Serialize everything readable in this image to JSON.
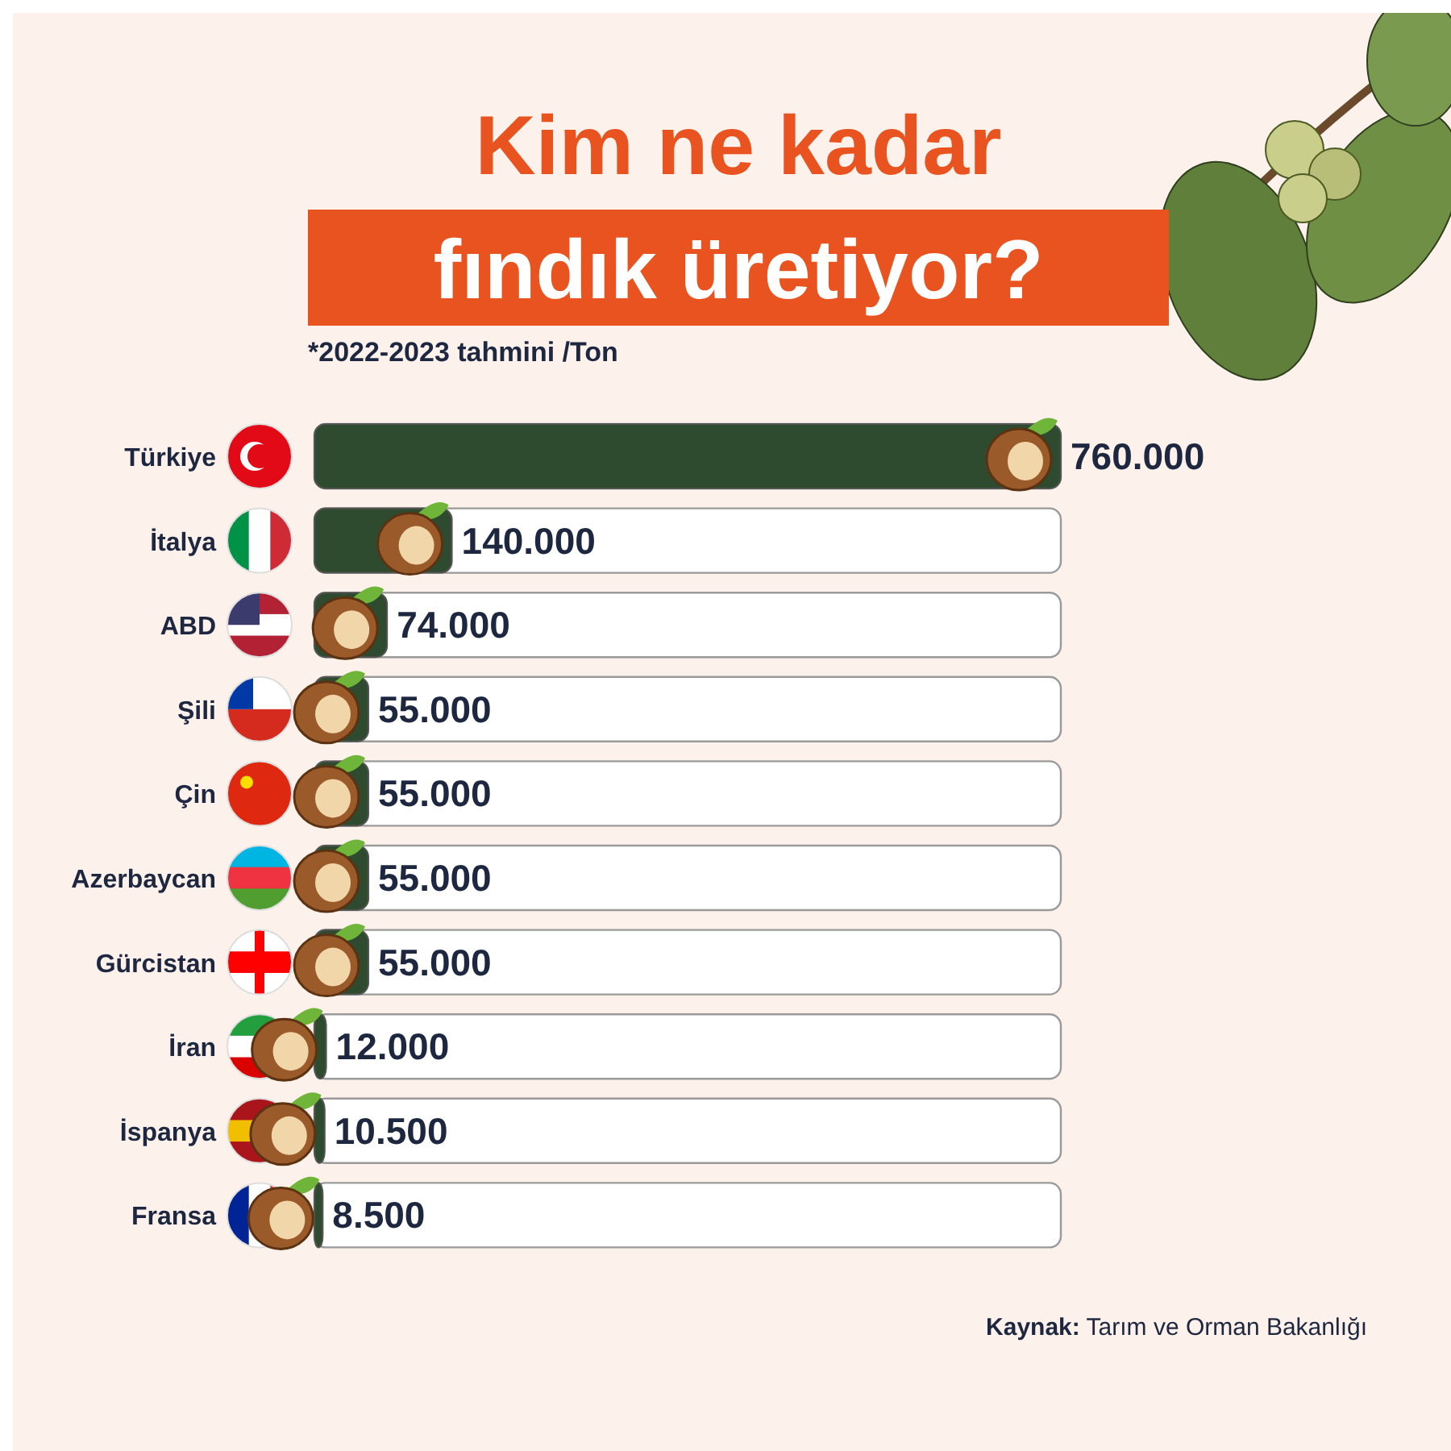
{
  "chart_data": {
    "type": "bar",
    "orientation": "horizontal",
    "title": "Kim ne kadar",
    "subtitle": "fındık üretiyor?",
    "annotations": [
      "*2022-2023 tahmini /Ton",
      "Kaynak: Tarım ve Orman Bakanlığı"
    ],
    "categories": [
      "Türkiye",
      "İtalya",
      "ABD",
      "Şili",
      "Çin",
      "Azerbaycan",
      "Gürcistan",
      "İran",
      "İspanya",
      "Fransa"
    ],
    "values": [
      760000,
      140000,
      74000,
      55000,
      55000,
      55000,
      55000,
      12000,
      10500,
      8500
    ],
    "value_labels": [
      "760.000",
      "140.000",
      "74.000",
      "55.000",
      "55.000",
      "55.000",
      "55.000",
      "12.000",
      "10.500",
      "8.500"
    ],
    "color": "#2e4a2f",
    "xlim": [
      0,
      760000
    ]
  }
}
